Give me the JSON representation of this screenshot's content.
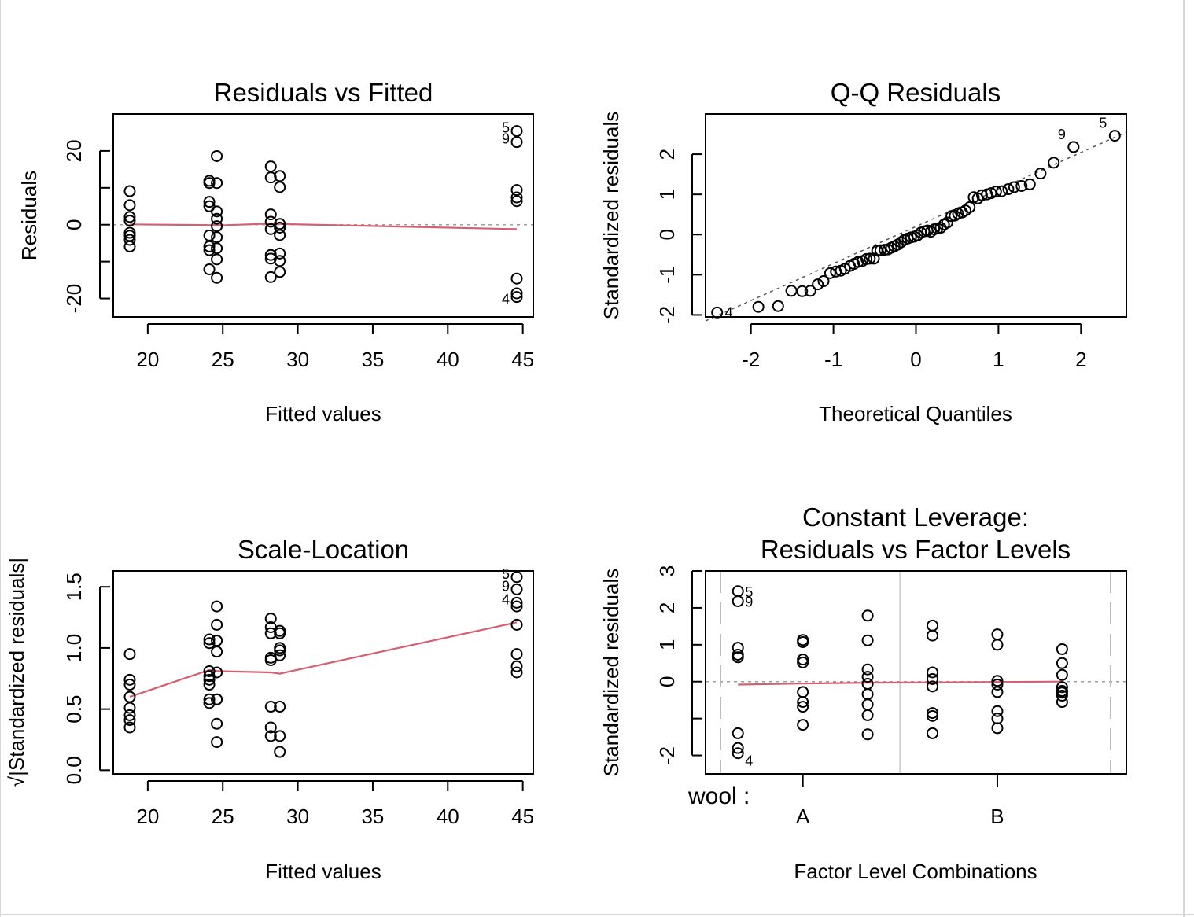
{
  "colors": {
    "smooth": "#d56074",
    "reference": "#9e9e9e",
    "ink": "#000000",
    "border": "#cfcfcf"
  },
  "chart_data": [
    {
      "type": "scatter",
      "title": "Residuals vs Fitted",
      "xlabel": "Fitted values",
      "ylabel": "Residuals",
      "xlim": [
        17.7,
        45.7
      ],
      "ylim": [
        -25,
        30
      ],
      "xticks": [
        20,
        25,
        30,
        35,
        40,
        45
      ],
      "yticks": [
        -20,
        0,
        20
      ],
      "ytick_minor": [
        -10,
        10
      ],
      "reference_line": 0,
      "points": [
        [
          18.8,
          9.1
        ],
        [
          18.8,
          5.3
        ],
        [
          18.8,
          2.1
        ],
        [
          18.8,
          1.1
        ],
        [
          18.8,
          -2.2
        ],
        [
          18.8,
          -3.0
        ],
        [
          18.8,
          -4.1
        ],
        [
          18.8,
          -5.9
        ],
        [
          24.1,
          11.9
        ],
        [
          24.1,
          11.3
        ],
        [
          24.1,
          6.2
        ],
        [
          24.1,
          5.0
        ],
        [
          24.1,
          -2.9
        ],
        [
          24.1,
          -5.9
        ],
        [
          24.1,
          -6.9
        ],
        [
          24.1,
          -12.1
        ],
        [
          24.6,
          18.6
        ],
        [
          24.6,
          11.3
        ],
        [
          24.6,
          3.6
        ],
        [
          24.6,
          1.6
        ],
        [
          24.6,
          -0.4
        ],
        [
          24.6,
          -3.4
        ],
        [
          24.6,
          -6.4
        ],
        [
          24.6,
          -9.4
        ],
        [
          24.6,
          -14.4
        ],
        [
          28.2,
          15.8
        ],
        [
          28.2,
          12.8
        ],
        [
          28.2,
          2.8
        ],
        [
          28.2,
          0.8
        ],
        [
          28.2,
          -1.2
        ],
        [
          28.2,
          -8.2
        ],
        [
          28.2,
          -9.2
        ],
        [
          28.2,
          -14.2
        ],
        [
          28.8,
          13.2
        ],
        [
          28.8,
          10.2
        ],
        [
          28.8,
          0.2
        ],
        [
          28.8,
          -0.8
        ],
        [
          28.8,
          -2.8
        ],
        [
          28.8,
          -7.8
        ],
        [
          28.8,
          -9.8
        ],
        [
          28.8,
          -12.8
        ],
        [
          44.6,
          25.4
        ],
        [
          44.6,
          22.4
        ],
        [
          44.6,
          9.4
        ],
        [
          44.6,
          7.4
        ],
        [
          44.6,
          6.4
        ],
        [
          44.6,
          -14.6
        ],
        [
          44.6,
          -18.6
        ],
        [
          44.6,
          -19.6
        ]
      ],
      "point_labels": [
        {
          "text": "5",
          "x": 44.6,
          "y": 25.4
        },
        {
          "text": "9",
          "x": 44.6,
          "y": 22.4
        },
        {
          "text": "4",
          "x": 44.6,
          "y": -19.6
        }
      ],
      "smooth_line": [
        [
          18.8,
          0.1
        ],
        [
          24.1,
          -0.1
        ],
        [
          24.6,
          -0.2
        ],
        [
          28.2,
          0.3
        ],
        [
          28.8,
          0.2
        ],
        [
          44.6,
          -1.2
        ]
      ]
    },
    {
      "type": "scatter",
      "title": "Q-Q Residuals",
      "xlabel": "Theoretical Quantiles",
      "ylabel": "Standardized residuals",
      "xlim": [
        -2.55,
        2.55
      ],
      "ylim": [
        -2.05,
        3.0
      ],
      "xticks": [
        -2,
        -1,
        0,
        1,
        2
      ],
      "yticks": [
        -2,
        -1,
        0,
        1,
        2
      ],
      "reference_line": [
        [
          -2.55,
          -2.15
        ],
        [
          2.55,
          2.55
        ]
      ],
      "points": [
        [
          -2.41,
          -1.94
        ],
        [
          -1.91,
          -1.8
        ],
        [
          -1.67,
          -1.78
        ],
        [
          -1.51,
          -1.4
        ],
        [
          -1.38,
          -1.41
        ],
        [
          -1.28,
          -1.4
        ],
        [
          -1.19,
          -1.24
        ],
        [
          -1.12,
          -1.16
        ],
        [
          -1.04,
          -0.96
        ],
        [
          -0.97,
          -0.92
        ],
        [
          -0.91,
          -0.9
        ],
        [
          -0.86,
          -0.85
        ],
        [
          -0.8,
          -0.78
        ],
        [
          -0.75,
          -0.73
        ],
        [
          -0.7,
          -0.68
        ],
        [
          -0.65,
          -0.66
        ],
        [
          -0.6,
          -0.61
        ],
        [
          -0.56,
          -0.6
        ],
        [
          -0.51,
          -0.6
        ],
        [
          -0.47,
          -0.4
        ],
        [
          -0.43,
          -0.39
        ],
        [
          -0.38,
          -0.38
        ],
        [
          -0.34,
          -0.37
        ],
        [
          -0.3,
          -0.33
        ],
        [
          -0.26,
          -0.29
        ],
        [
          -0.22,
          -0.25
        ],
        [
          -0.18,
          -0.19
        ],
        [
          -0.14,
          -0.13
        ],
        [
          -0.1,
          -0.1
        ],
        [
          -0.06,
          -0.07
        ],
        [
          -0.02,
          -0.05
        ],
        [
          0.02,
          -0.02
        ],
        [
          0.06,
          0.05
        ],
        [
          0.1,
          0.08
        ],
        [
          0.14,
          0.1
        ],
        [
          0.18,
          0.07
        ],
        [
          0.22,
          0.13
        ],
        [
          0.26,
          0.15
        ],
        [
          0.3,
          0.17
        ],
        [
          0.34,
          0.25
        ],
        [
          0.38,
          0.3
        ],
        [
          0.43,
          0.46
        ],
        [
          0.47,
          0.47
        ],
        [
          0.51,
          0.52
        ],
        [
          0.56,
          0.55
        ],
        [
          0.6,
          0.6
        ],
        [
          0.65,
          0.68
        ],
        [
          0.7,
          0.93
        ],
        [
          0.75,
          0.9
        ],
        [
          0.8,
          0.98
        ],
        [
          0.86,
          1.0
        ],
        [
          0.91,
          1.03
        ],
        [
          0.97,
          1.07
        ],
        [
          1.04,
          1.08
        ],
        [
          1.12,
          1.13
        ],
        [
          1.19,
          1.18
        ],
        [
          1.28,
          1.21
        ],
        [
          1.38,
          1.25
        ],
        [
          1.51,
          1.52
        ],
        [
          1.67,
          1.79
        ],
        [
          1.91,
          2.18
        ],
        [
          2.41,
          2.46
        ]
      ],
      "point_labels": [
        {
          "text": "9",
          "x": 1.91,
          "y": 2.18
        },
        {
          "text": "5",
          "x": 2.41,
          "y": 2.46
        },
        {
          "text": "4",
          "x": -2.41,
          "y": -1.94
        }
      ]
    },
    {
      "type": "scatter",
      "title": "Scale-Location",
      "xlabel": "Fitted values",
      "ylabel": "√|Standardized residuals|",
      "xlim": [
        17.7,
        45.7
      ],
      "ylim": [
        -0.03,
        1.63
      ],
      "xticks": [
        20,
        25,
        30,
        35,
        40,
        45
      ],
      "yticks": [
        0.0,
        0.5,
        1.0,
        1.5
      ],
      "ytick_labels": [
        "0.0",
        "0.5",
        "1.0",
        "1.5"
      ],
      "points": [
        [
          18.8,
          0.95
        ],
        [
          18.8,
          0.74
        ],
        [
          18.8,
          0.7
        ],
        [
          18.8,
          0.6
        ],
        [
          18.8,
          0.51
        ],
        [
          18.8,
          0.45
        ],
        [
          18.8,
          0.41
        ],
        [
          18.8,
          0.35
        ],
        [
          24.1,
          1.07
        ],
        [
          24.1,
          1.04
        ],
        [
          24.1,
          0.81
        ],
        [
          24.1,
          0.77
        ],
        [
          24.1,
          0.74
        ],
        [
          24.1,
          0.7
        ],
        [
          24.1,
          0.55
        ],
        [
          24.1,
          0.58
        ],
        [
          24.6,
          1.34
        ],
        [
          24.6,
          1.19
        ],
        [
          24.6,
          1.06
        ],
        [
          24.6,
          0.97
        ],
        [
          24.6,
          0.8
        ],
        [
          24.6,
          0.58
        ],
        [
          24.6,
          0.58
        ],
        [
          24.6,
          0.38
        ],
        [
          24.6,
          0.23
        ],
        [
          28.2,
          1.24
        ],
        [
          28.2,
          1.17
        ],
        [
          28.2,
          1.12
        ],
        [
          28.2,
          0.92
        ],
        [
          28.2,
          0.9
        ],
        [
          28.2,
          0.52
        ],
        [
          28.2,
          0.35
        ],
        [
          28.2,
          0.28
        ],
        [
          28.8,
          1.14
        ],
        [
          28.8,
          1.12
        ],
        [
          28.8,
          1.0
        ],
        [
          28.8,
          0.98
        ],
        [
          28.8,
          0.94
        ],
        [
          28.8,
          0.52
        ],
        [
          28.8,
          0.28
        ],
        [
          28.8,
          0.15
        ],
        [
          44.6,
          1.58
        ],
        [
          44.6,
          1.48
        ],
        [
          44.6,
          1.37
        ],
        [
          44.6,
          1.34
        ],
        [
          44.6,
          1.19
        ],
        [
          44.6,
          0.95
        ],
        [
          44.6,
          0.85
        ],
        [
          44.6,
          0.8
        ]
      ],
      "point_labels": [
        {
          "text": "5",
          "x": 44.6,
          "y": 1.58
        },
        {
          "text": "9",
          "x": 44.6,
          "y": 1.48
        },
        {
          "text": "4",
          "x": 44.6,
          "y": 1.37
        }
      ],
      "smooth_line": [
        [
          18.8,
          0.6
        ],
        [
          24.1,
          0.82
        ],
        [
          24.6,
          0.81
        ],
        [
          28.2,
          0.8
        ],
        [
          28.8,
          0.79
        ],
        [
          44.6,
          1.21
        ]
      ]
    },
    {
      "type": "scatter",
      "title": "Constant Leverage:\nResiduals vs Factor Levels",
      "title_lines": [
        "Constant Leverage:",
        "Residuals vs Factor Levels"
      ],
      "xlabel": "Factor Level Combinations",
      "ylabel": "Standardized residuals",
      "factor_name": "wool :",
      "factor_levels": [
        "A",
        "B"
      ],
      "xlim": [
        0.5,
        6.99
      ],
      "ylim": [
        -2.5,
        3.0
      ],
      "yticks": [
        -2,
        0,
        1,
        2,
        3
      ],
      "ytick_minor": [
        -1
      ],
      "separator": 3.5,
      "reference_line": 0,
      "points": [
        [
          1,
          2.45
        ],
        [
          1,
          2.18
        ],
        [
          1,
          0.92
        ],
        [
          1,
          0.73
        ],
        [
          1,
          0.66
        ],
        [
          1,
          -1.4
        ],
        [
          1,
          -1.8
        ],
        [
          1,
          -1.94
        ],
        [
          2,
          1.13
        ],
        [
          2,
          1.07
        ],
        [
          2,
          0.6
        ],
        [
          2,
          0.52
        ],
        [
          2,
          -0.28
        ],
        [
          2,
          -0.55
        ],
        [
          2,
          -0.68
        ],
        [
          2,
          -1.17
        ],
        [
          3,
          1.79
        ],
        [
          3,
          1.12
        ],
        [
          3,
          0.33
        ],
        [
          3,
          0.13
        ],
        [
          3,
          -0.06
        ],
        [
          3,
          -0.34
        ],
        [
          3,
          -0.62
        ],
        [
          3,
          -0.91
        ],
        [
          3,
          -1.43
        ],
        [
          4,
          1.52
        ],
        [
          4,
          1.25
        ],
        [
          4,
          0.25
        ],
        [
          4,
          0.07
        ],
        [
          4,
          -0.13
        ],
        [
          4,
          -0.85
        ],
        [
          4,
          -0.93
        ],
        [
          4,
          -1.4
        ],
        [
          5,
          1.28
        ],
        [
          5,
          1.0
        ],
        [
          5,
          0.02
        ],
        [
          5,
          -0.08
        ],
        [
          5,
          -0.28
        ],
        [
          5,
          -0.8
        ],
        [
          5,
          -1.0
        ],
        [
          5,
          -1.26
        ],
        [
          6,
          0.88
        ],
        [
          6,
          0.5
        ],
        [
          6,
          0.18
        ],
        [
          6,
          -0.15
        ],
        [
          6,
          -0.25
        ],
        [
          6,
          -0.3
        ],
        [
          6,
          -0.38
        ],
        [
          6,
          -0.55
        ]
      ],
      "point_labels": [
        {
          "text": "5",
          "x": 1,
          "y": 2.45
        },
        {
          "text": "9",
          "x": 1,
          "y": 2.18
        },
        {
          "text": "4",
          "x": 1,
          "y": -1.94
        }
      ],
      "smooth_line": [
        [
          1,
          -0.08
        ],
        [
          2,
          -0.05
        ],
        [
          3,
          -0.03
        ],
        [
          4,
          -0.02
        ],
        [
          5,
          -0.01
        ],
        [
          6,
          0.0
        ]
      ]
    }
  ]
}
